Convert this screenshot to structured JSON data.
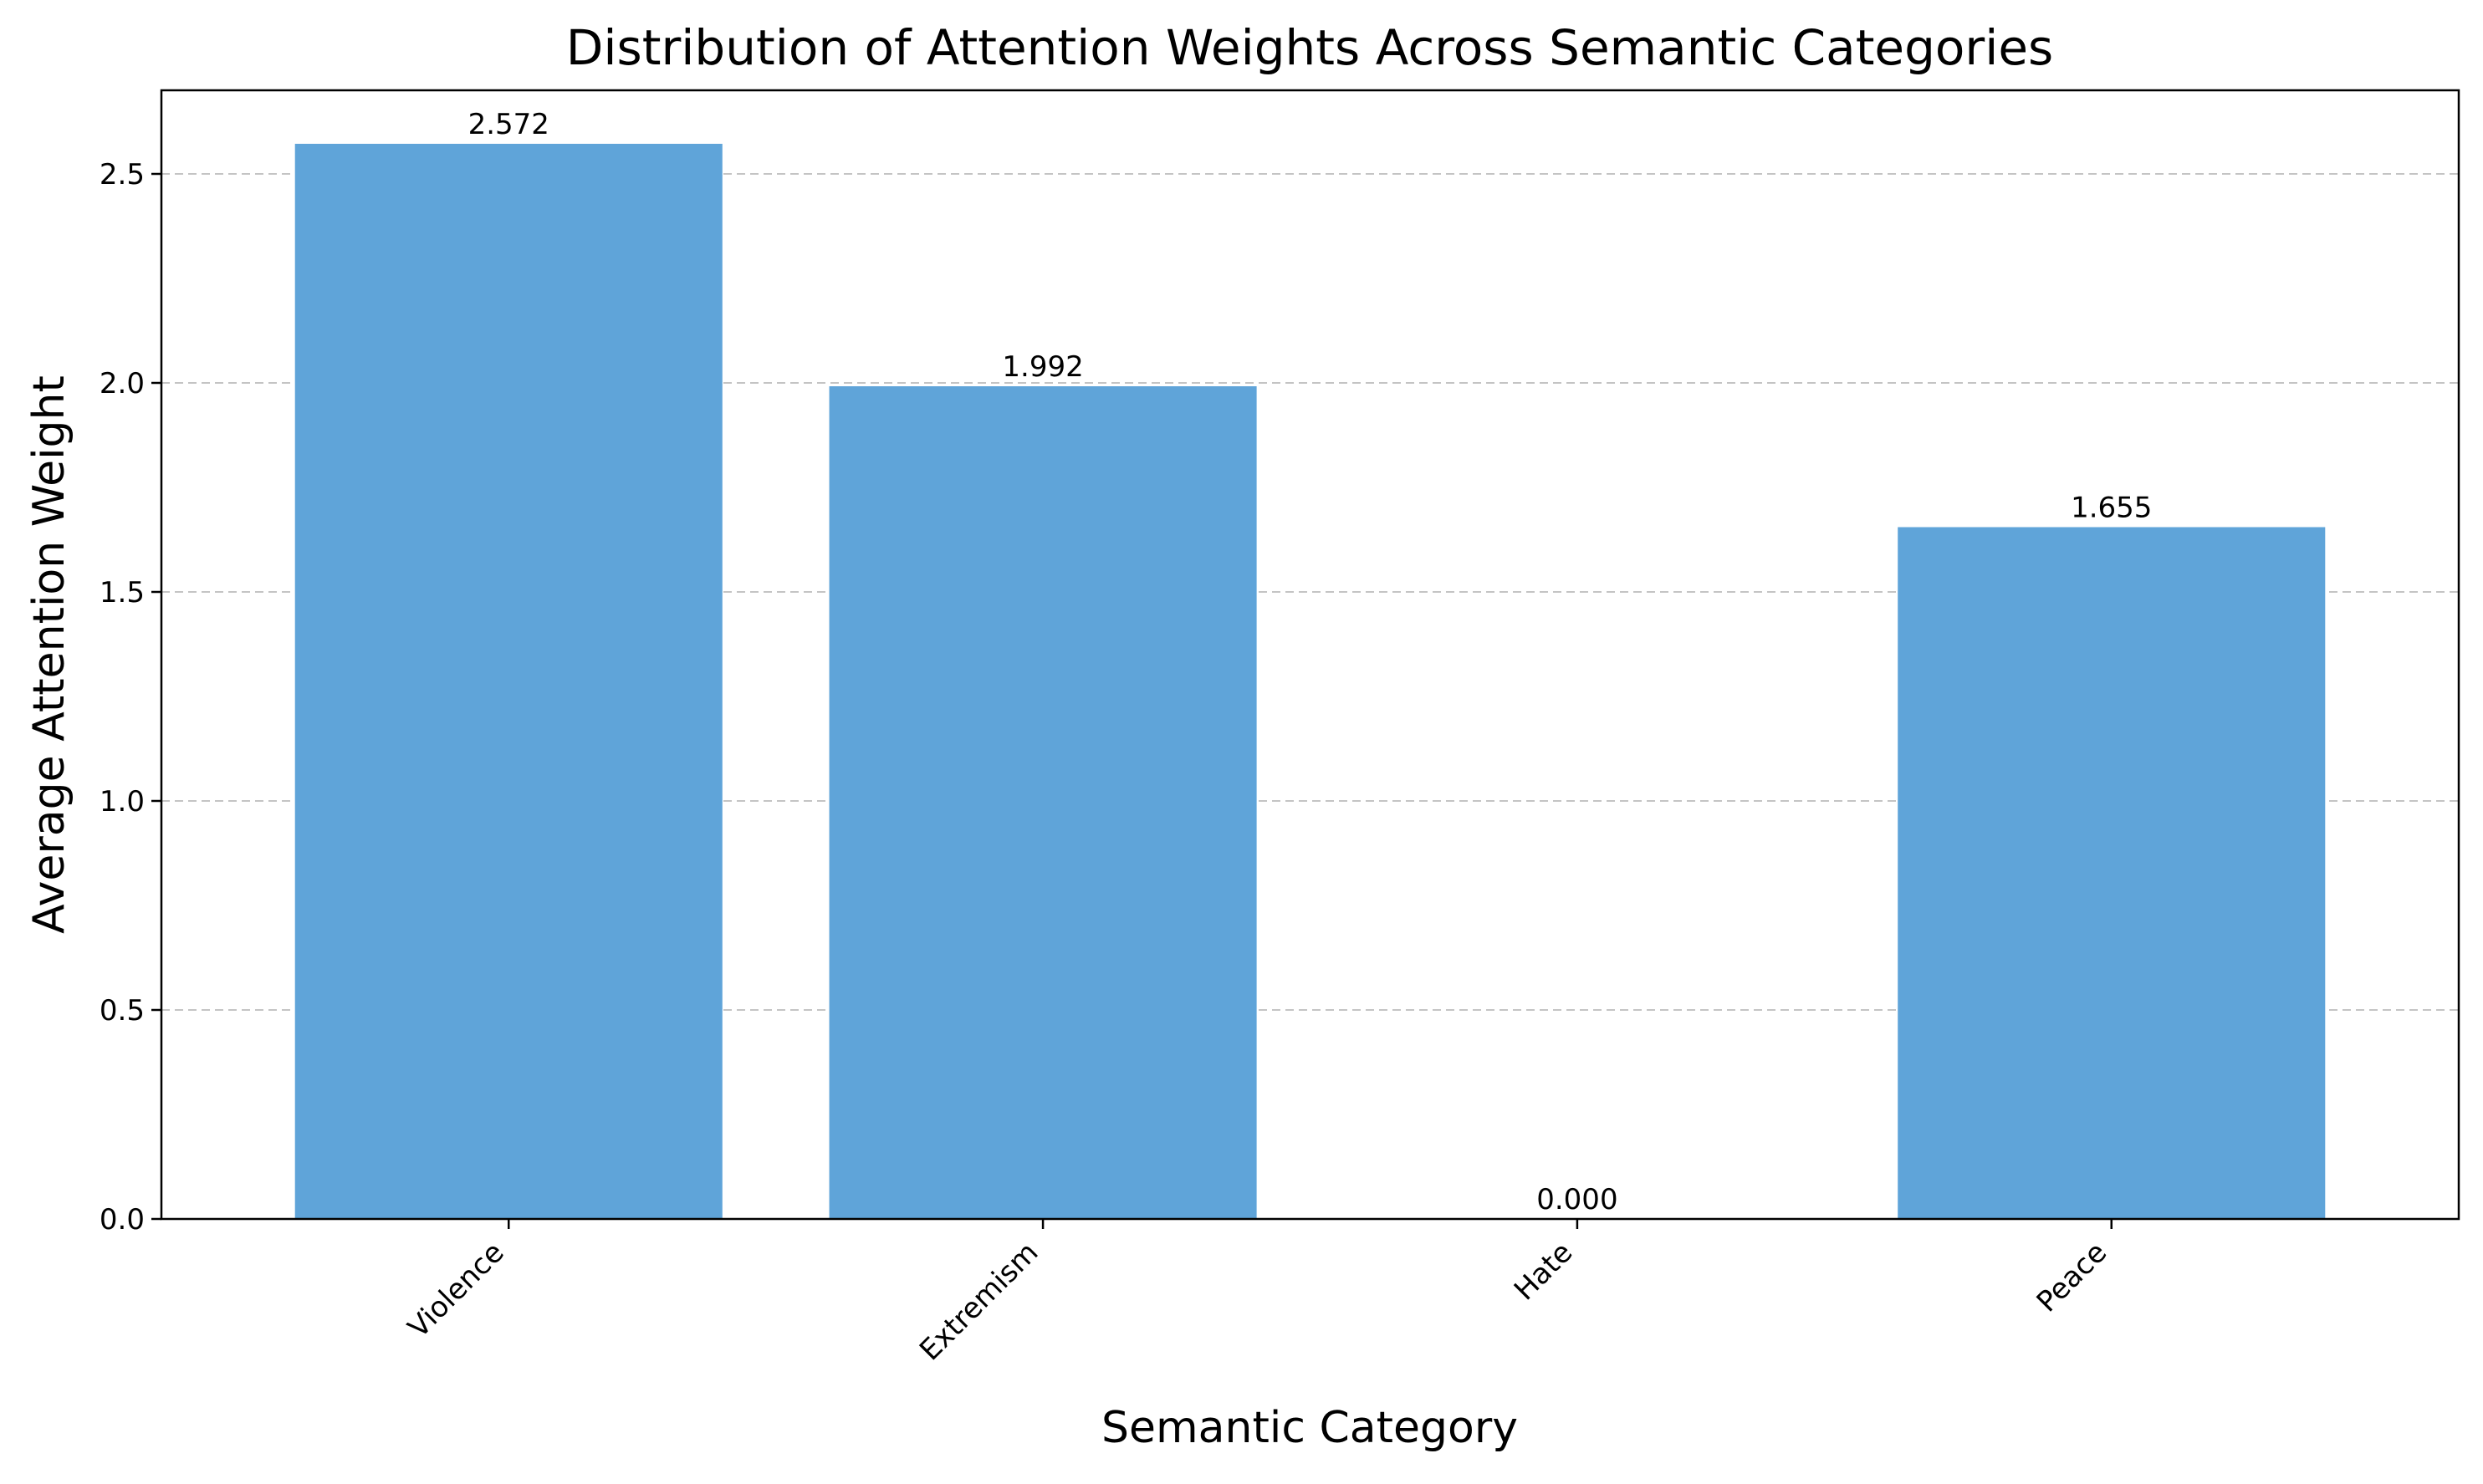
{
  "chart_data": {
    "type": "bar",
    "title": "Distribution of Attention Weights Across Semantic Categories",
    "xlabel": "Semantic Category",
    "ylabel": "Average Attention Weight",
    "categories": [
      "Violence",
      "Extremism",
      "Hate",
      "Peace"
    ],
    "values": [
      2.572,
      1.992,
      0.0,
      1.655
    ],
    "value_labels": [
      "2.572",
      "1.992",
      "0.000",
      "1.655"
    ],
    "ylim": [
      0,
      2.7
    ],
    "yticks": [
      0.0,
      0.5,
      1.0,
      1.5,
      2.0,
      2.5
    ],
    "ytick_labels": [
      "0.0",
      "0.5",
      "1.0",
      "1.5",
      "2.0",
      "2.5"
    ],
    "grid": "horizontal dashed",
    "bar_color": "#5fa4d9",
    "grid_color": "#c4c4c4"
  }
}
